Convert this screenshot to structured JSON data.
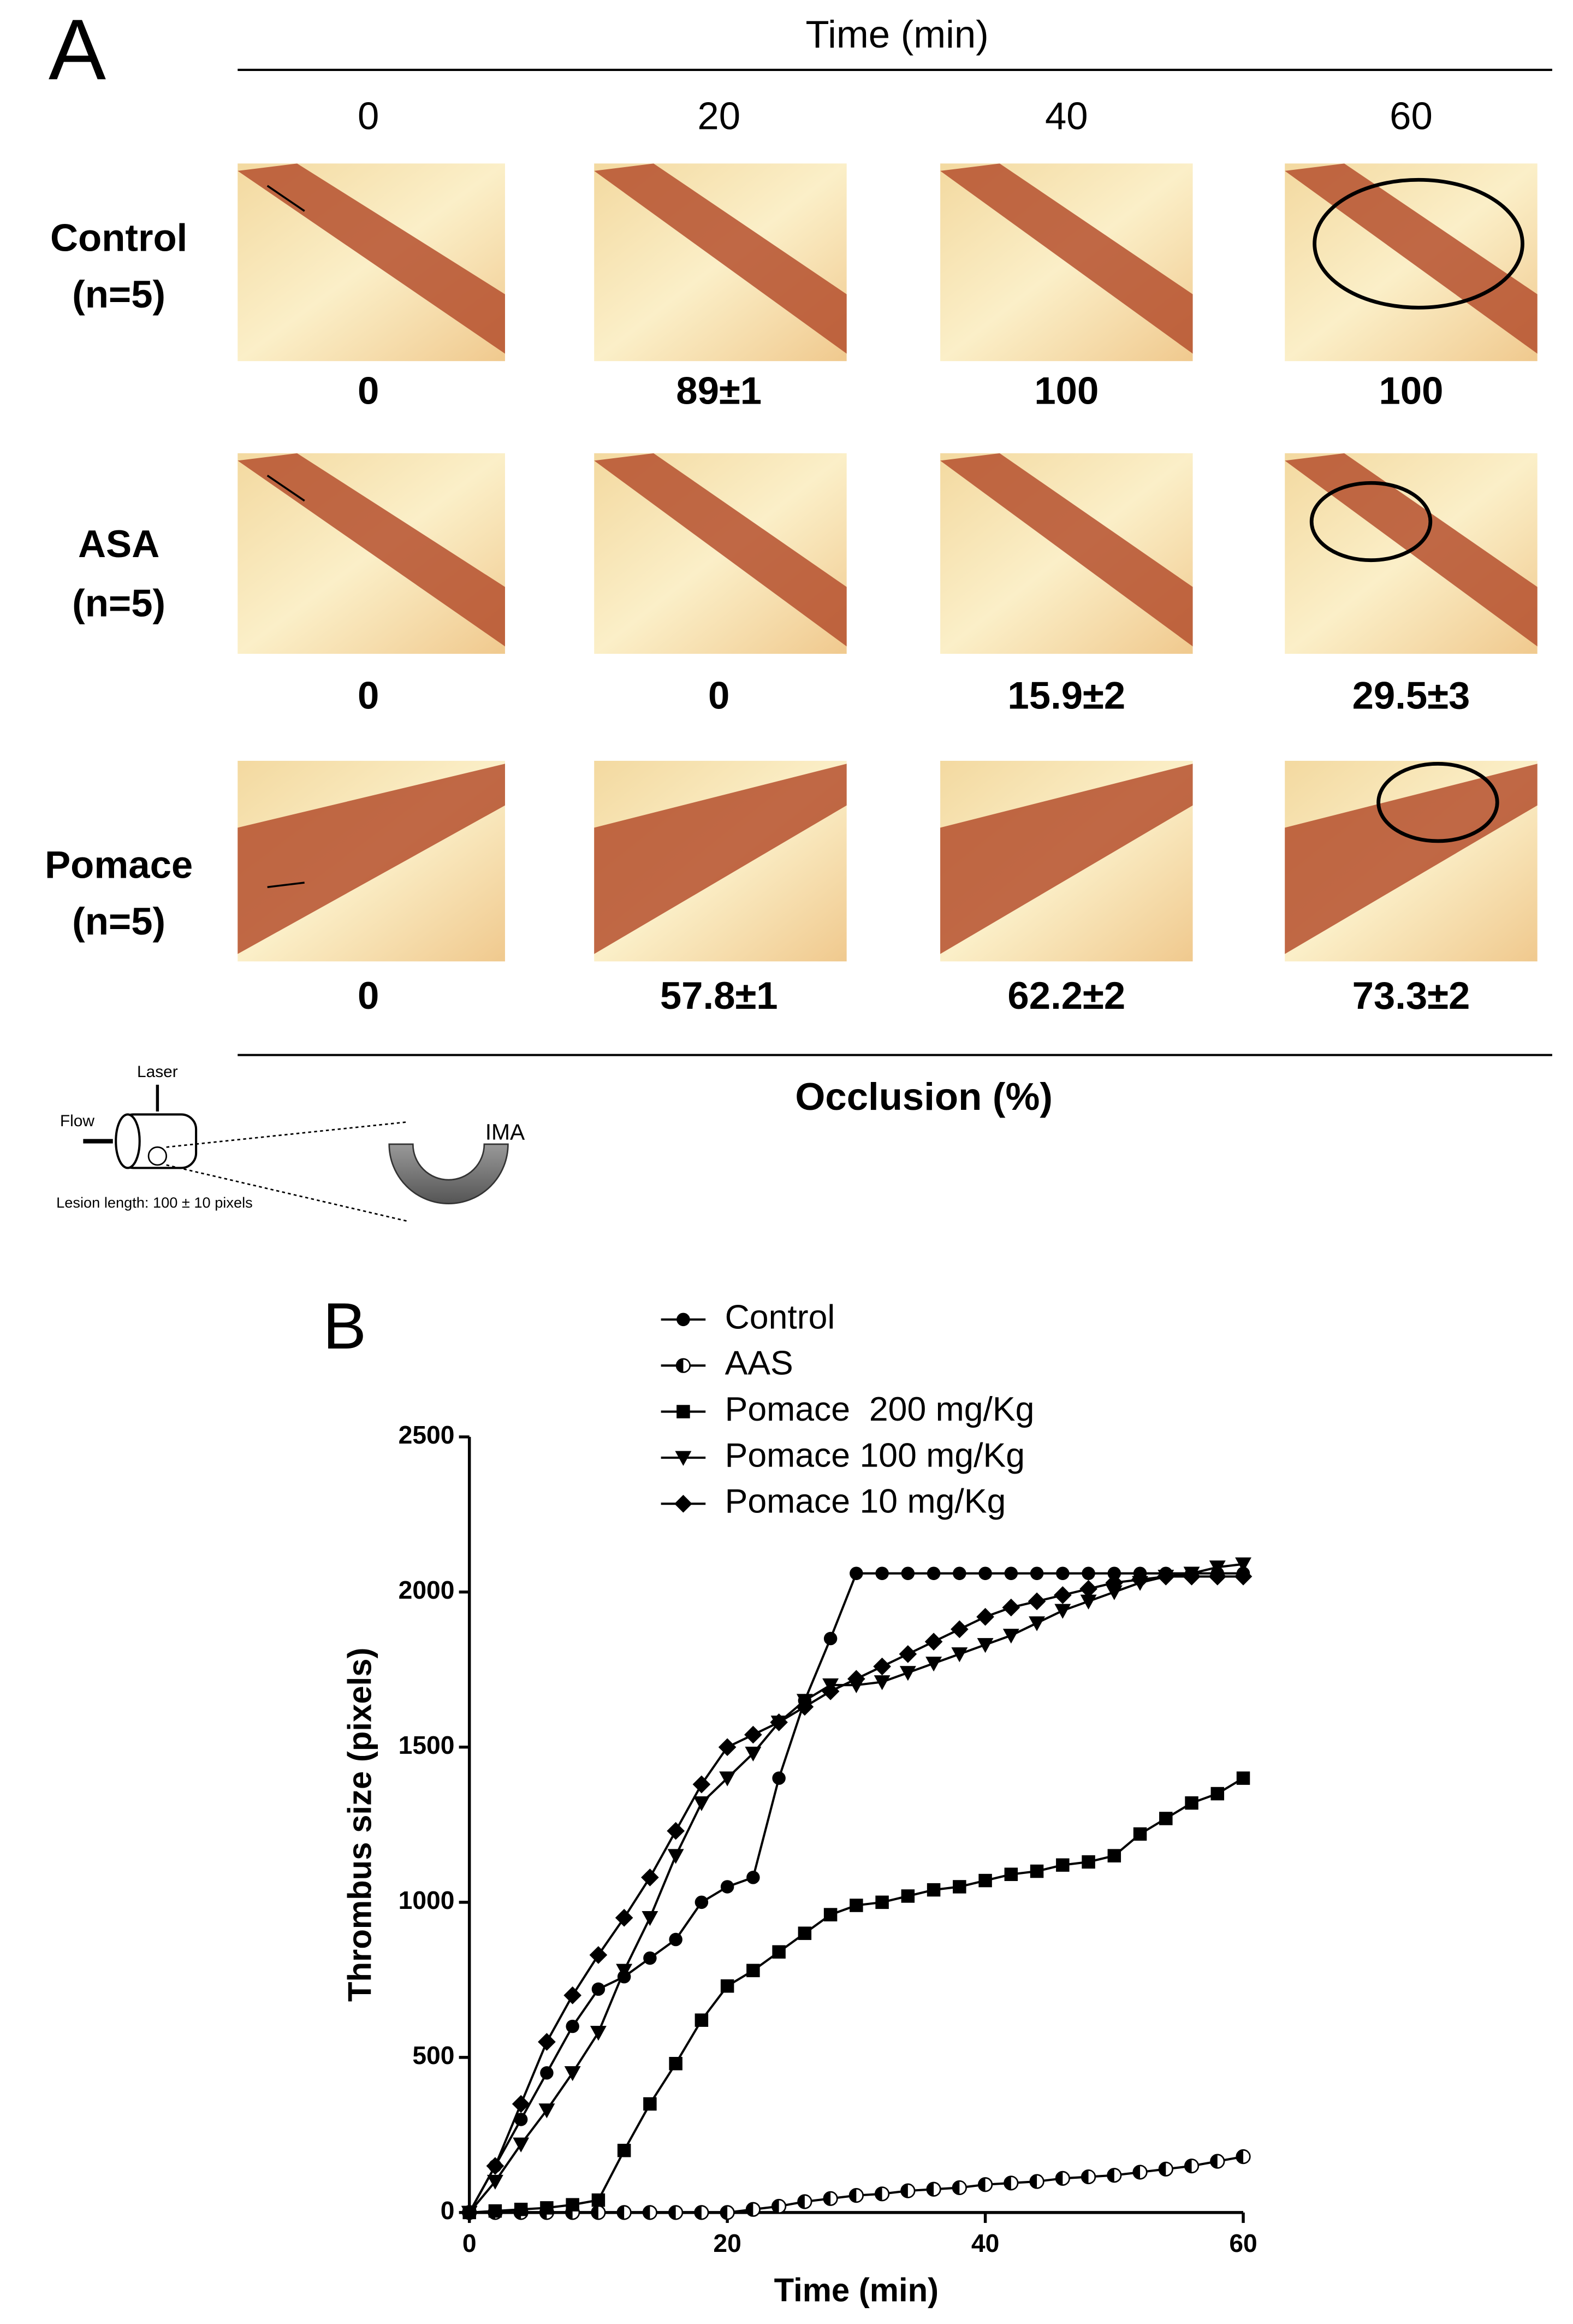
{
  "panel_a": {
    "label": "A",
    "header": "Time (min)",
    "times": [
      "0",
      "20",
      "40",
      "60"
    ],
    "rows": [
      {
        "name": "Control",
        "n": "(n=5)",
        "values": [
          "0",
          "89±1",
          "100",
          "100"
        ]
      },
      {
        "name": "ASA",
        "n": "(n=5)",
        "values": [
          "0",
          "0",
          "15.9±2",
          "29.5±3"
        ]
      },
      {
        "name": "Pomace",
        "n": "(n=5)",
        "values": [
          "0",
          "57.8±1",
          "62.2±2",
          "73.3±2"
        ]
      }
    ],
    "footer": "Occlusion (%)",
    "schematic": {
      "laser": "Laser",
      "flow": "Flow",
      "lesion": "Lesion length: 100 ± 10 pixels",
      "vessel": "IMA"
    }
  },
  "chart_data": {
    "type": "line",
    "label": "B",
    "x_label": "Time (min)",
    "y_label": "Thrombus size (pixels)",
    "xlim": [
      0,
      60
    ],
    "xticks": [
      0,
      20,
      40,
      60
    ],
    "ylim": [
      0,
      2500
    ],
    "yticks": [
      0,
      500,
      1000,
      1500,
      2000,
      2500
    ],
    "legend": "top",
    "x": [
      0,
      2,
      4,
      6,
      8,
      10,
      12,
      14,
      16,
      18,
      20,
      22,
      24,
      26,
      28,
      30,
      32,
      34,
      36,
      38,
      40,
      42,
      44,
      46,
      48,
      50,
      52,
      54,
      56,
      58,
      60
    ],
    "series": [
      {
        "name": "Control",
        "color": "#000000",
        "marker": "circle",
        "values": [
          0,
          150,
          300,
          450,
          600,
          720,
          760,
          820,
          880,
          1000,
          1050,
          1080,
          1400,
          1650,
          1850,
          2060,
          2060,
          2060,
          2060,
          2060,
          2060,
          2060,
          2060,
          2060,
          2060,
          2060,
          2060,
          2060,
          2060,
          2060,
          2060
        ]
      },
      {
        "name": "AAS",
        "color": "#000000",
        "marker": "half-circle",
        "values": [
          0,
          0,
          0,
          0,
          0,
          0,
          0,
          0,
          0,
          0,
          0,
          10,
          20,
          35,
          45,
          55,
          60,
          70,
          75,
          80,
          90,
          95,
          100,
          110,
          115,
          120,
          130,
          140,
          150,
          165,
          180
        ]
      },
      {
        "name": "Pomace  200 mg/Kg",
        "color": "#000000",
        "marker": "square",
        "values": [
          0,
          5,
          10,
          15,
          25,
          40,
          200,
          350,
          480,
          620,
          730,
          780,
          840,
          900,
          960,
          990,
          1000,
          1020,
          1040,
          1050,
          1070,
          1090,
          1100,
          1120,
          1130,
          1150,
          1220,
          1270,
          1320,
          1350,
          1400
        ]
      },
      {
        "name": "Pomace 100 mg/Kg",
        "color": "#000000",
        "marker": "triangle-down",
        "values": [
          0,
          100,
          220,
          330,
          450,
          580,
          780,
          950,
          1150,
          1320,
          1400,
          1480,
          1580,
          1650,
          1700,
          1700,
          1710,
          1740,
          1770,
          1800,
          1830,
          1860,
          1900,
          1940,
          1970,
          2000,
          2030,
          2050,
          2060,
          2080,
          2090
        ]
      },
      {
        "name": "Pomace 10 mg/Kg",
        "color": "#000000",
        "marker": "diamond",
        "values": [
          0,
          150,
          350,
          550,
          700,
          830,
          950,
          1080,
          1230,
          1380,
          1500,
          1540,
          1580,
          1630,
          1680,
          1720,
          1760,
          1800,
          1840,
          1880,
          1920,
          1950,
          1970,
          1990,
          2010,
          2030,
          2040,
          2050,
          2050,
          2050,
          2050
        ]
      }
    ]
  }
}
